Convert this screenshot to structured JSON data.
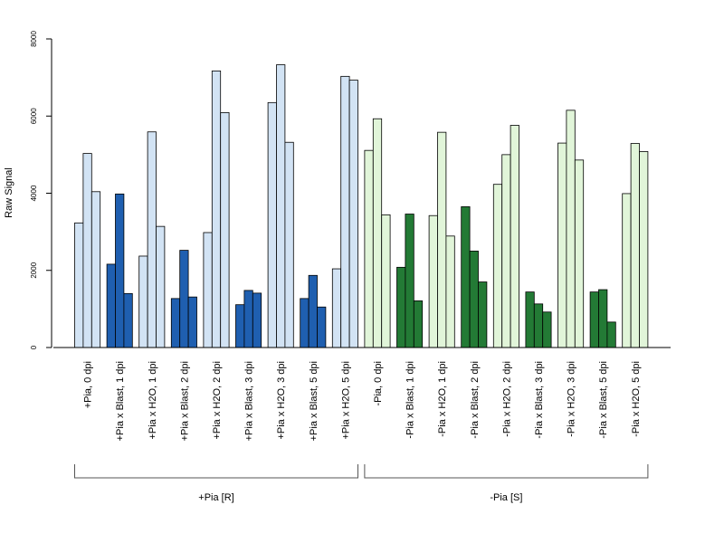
{
  "chart_data": {
    "type": "bar",
    "title": "",
    "xlabel": "",
    "ylabel": "Raw Signal",
    "ylim": [
      0,
      8000
    ],
    "y_ticks": [
      "0",
      "2000",
      "4000",
      "6000",
      "8000"
    ],
    "grid": false,
    "colors": {
      "pia_r_h2o": "#d2e3f4",
      "pia_r_blast": "#1f5fb0",
      "pia_s_h2o": "#e1f5d9",
      "pia_s_blast": "#237a35",
      "outline": "#000000"
    },
    "categories": [
      {
        "label": "+Pia, 0 dpi",
        "color_key": "pia_r_h2o",
        "values": [
          3230,
          5030,
          4040
        ]
      },
      {
        "label": "+Pia x Blast, 1 dpi",
        "color_key": "pia_r_blast",
        "values": [
          2160,
          3980,
          1400
        ]
      },
      {
        "label": "+Pia x H2O, 1 dpi",
        "color_key": "pia_r_h2o",
        "values": [
          2370,
          5590,
          3140
        ]
      },
      {
        "label": "+Pia x Blast, 2 dpi",
        "color_key": "pia_r_blast",
        "values": [
          1270,
          2520,
          1310
        ]
      },
      {
        "label": "+Pia x H2O, 2 dpi",
        "color_key": "pia_r_h2o",
        "values": [
          2980,
          7170,
          6090
        ]
      },
      {
        "label": "+Pia x Blast, 3 dpi",
        "color_key": "pia_r_blast",
        "values": [
          1110,
          1480,
          1410
        ]
      },
      {
        "label": "+Pia x H2O, 3 dpi",
        "color_key": "pia_r_h2o",
        "values": [
          6350,
          7330,
          5320
        ]
      },
      {
        "label": "+Pia x Blast, 5 dpi",
        "color_key": "pia_r_blast",
        "values": [
          1270,
          1870,
          1050
        ]
      },
      {
        "label": "+Pia x H2O, 5 dpi",
        "color_key": "pia_r_h2o",
        "values": [
          2040,
          7030,
          6930
        ]
      },
      {
        "label": "-Pia, 0 dpi",
        "color_key": "pia_s_h2o",
        "values": [
          5110,
          5930,
          3440
        ]
      },
      {
        "label": "-Pia x Blast, 1 dpi",
        "color_key": "pia_s_blast",
        "values": [
          2080,
          3460,
          1210
        ]
      },
      {
        "label": "-Pia x H2O, 1 dpi",
        "color_key": "pia_s_h2o",
        "values": [
          3420,
          5580,
          2890
        ]
      },
      {
        "label": "-Pia x Blast, 2 dpi",
        "color_key": "pia_s_blast",
        "values": [
          3650,
          2500,
          1700
        ]
      },
      {
        "label": "-Pia x H2O, 2 dpi",
        "color_key": "pia_s_h2o",
        "values": [
          4230,
          5000,
          5760
        ]
      },
      {
        "label": "-Pia x Blast, 3 dpi",
        "color_key": "pia_s_blast",
        "values": [
          1440,
          1130,
          920
        ]
      },
      {
        "label": "-Pia x H2O, 3 dpi",
        "color_key": "pia_s_h2o",
        "values": [
          5300,
          6150,
          4860
        ]
      },
      {
        "label": "-Pia x Blast, 5 dpi",
        "color_key": "pia_s_blast",
        "values": [
          1440,
          1500,
          660
        ]
      },
      {
        "label": "-Pia x H2O, 5 dpi",
        "color_key": "pia_s_h2o",
        "values": [
          3990,
          5290,
          5080
        ]
      }
    ],
    "groups": [
      {
        "label": "+Pia [R]",
        "from": 0,
        "to": 8
      },
      {
        "label": "-Pia [S]",
        "from": 9,
        "to": 17
      }
    ]
  }
}
